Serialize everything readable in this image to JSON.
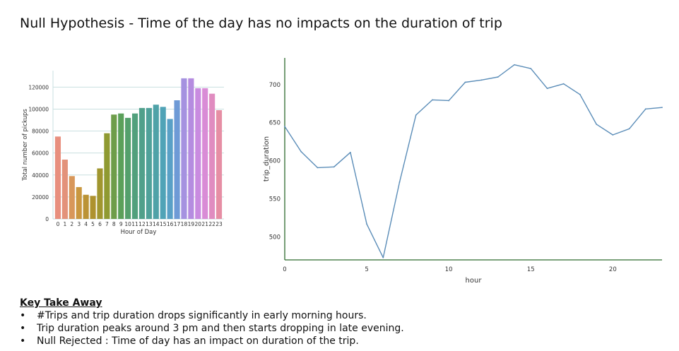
{
  "title": "Null Hypothesis - Time of the day has no impacts on the duration of trip",
  "chart_data": [
    {
      "type": "bar",
      "xlabel": "Hour of Day",
      "ylabel": "Total number of pickups",
      "ylim": [
        0,
        135000
      ],
      "yticks": [
        0,
        20000,
        40000,
        60000,
        80000,
        100000,
        120000
      ],
      "grid": true,
      "categories": [
        "0",
        "1",
        "2",
        "3",
        "4",
        "5",
        "6",
        "7",
        "8",
        "9",
        "10",
        "11",
        "12",
        "13",
        "14",
        "15",
        "16",
        "17",
        "18",
        "19",
        "20",
        "21",
        "22",
        "23"
      ],
      "values": [
        75000,
        54000,
        39000,
        29000,
        22000,
        21000,
        46000,
        78000,
        95000,
        96000,
        92000,
        96000,
        101000,
        101000,
        104000,
        102000,
        91000,
        108000,
        128000,
        128000,
        119000,
        119000,
        114000,
        99000
      ],
      "colors": [
        "#e88f7e",
        "#e3927a",
        "#d8975a",
        "#c9973f",
        "#bb9335",
        "#ae922e",
        "#a0962f",
        "#8f9a32",
        "#6e9d4a",
        "#5ba05a",
        "#54a06c",
        "#51a07c",
        "#50a08b",
        "#4fa19a",
        "#4fa2a8",
        "#50a3b7",
        "#59a0c6",
        "#6e9ad6",
        "#a592e0",
        "#b58ce0",
        "#c98be0",
        "#d98cd6",
        "#e08cc0",
        "#e68ea4"
      ]
    },
    {
      "type": "line",
      "xlabel": "hour",
      "ylabel": "trip_duration",
      "xlim": [
        0,
        23
      ],
      "ylim": [
        470,
        735
      ],
      "xticks": [
        0,
        5,
        10,
        15,
        20
      ],
      "yticks": [
        500,
        550,
        600,
        650,
        700
      ],
      "grid": false,
      "color": "#5b8db8",
      "x": [
        0,
        1,
        2,
        3,
        4,
        5,
        6,
        7,
        8,
        9,
        10,
        11,
        12,
        13,
        14,
        15,
        16,
        17,
        18,
        19,
        20,
        21,
        22,
        23
      ],
      "y": [
        645,
        612,
        591,
        592,
        611,
        517,
        473,
        572,
        660,
        680,
        679,
        703,
        706,
        710,
        726,
        721,
        695,
        701,
        687,
        648,
        634,
        642,
        668,
        670
      ]
    }
  ],
  "takeaway": {
    "heading": "Key Take Away",
    "bullet": "•",
    "points": [
      "#Trips and trip duration drops significantly in early morning hours.",
      "Trip duration peaks around 3 pm and then starts dropping in late evening.",
      "Null Rejected : Time of day has an impact on duration of the trip."
    ]
  }
}
